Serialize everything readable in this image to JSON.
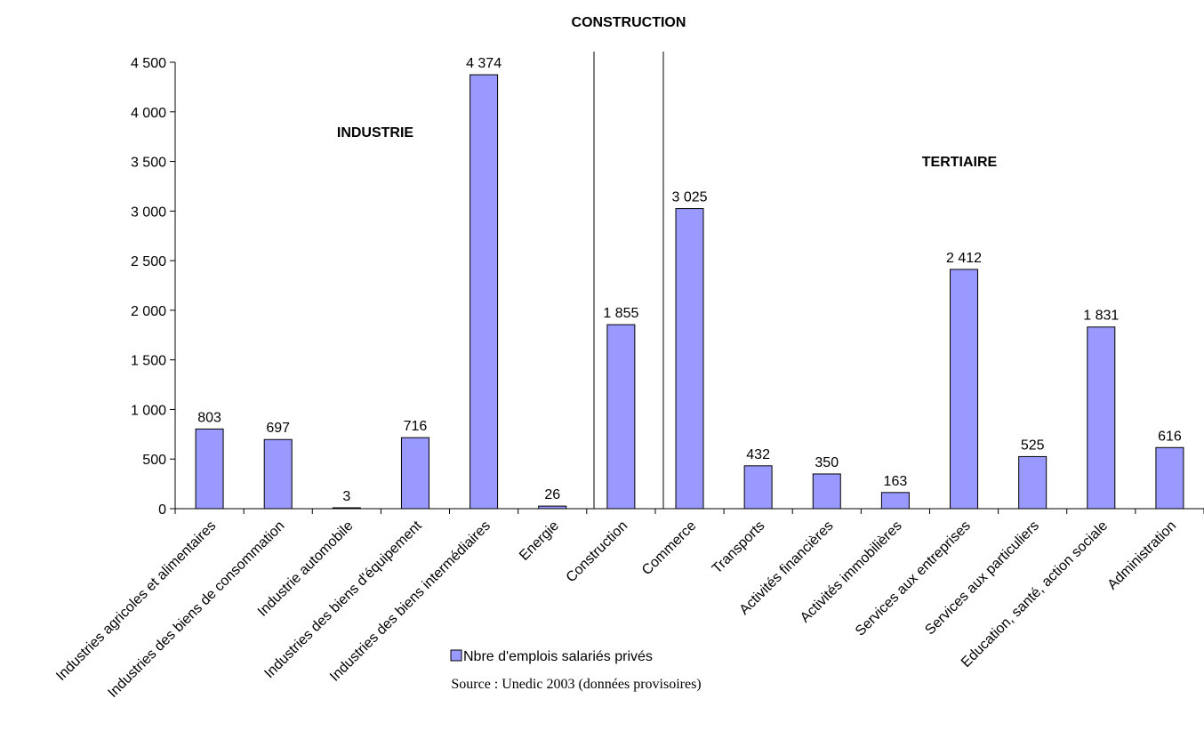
{
  "chart_data": {
    "type": "bar",
    "title": "CONSTRUCTION",
    "categories": [
      "Industries agricoles et alimentaires",
      "Industries des biens de consommation",
      "Industrie automobile",
      "Industries des biens d'équipement",
      "Industries des biens intermédiaires",
      "Energie",
      "Construction",
      "Commerce",
      "Transports",
      "Activités financières",
      "Activités immobilières",
      "Services aux entreprises",
      "Services aux particuliers",
      "Education, santé, action sociale",
      "Administration"
    ],
    "series": [
      {
        "name": "Nbre d'emplois salariés privés",
        "values": [
          803,
          697,
          3,
          716,
          4374,
          26,
          1855,
          3025,
          432,
          350,
          163,
          2412,
          525,
          1831,
          616
        ],
        "labels": [
          "803",
          "697",
          "3",
          "716",
          "4 374",
          "26",
          "1 855",
          "3 025",
          "432",
          "350",
          "163",
          "2 412",
          "525",
          "1 831",
          "616"
        ]
      }
    ],
    "ylim": [
      0,
      4500
    ],
    "yticks": [
      0,
      500,
      1000,
      1500,
      2000,
      2500,
      3000,
      3500,
      4000,
      4500
    ],
    "ytick_labels": [
      "0",
      "500",
      "1 000",
      "1 500",
      "2 000",
      "2 500",
      "3 000",
      "3 500",
      "4 000",
      "4 500"
    ],
    "xlabel": "",
    "ylabel": "",
    "grid": false,
    "legend_position": "bottom-center",
    "annotations": {
      "industrie": "INDUSTRIE",
      "tertiaire": "TERTIAIRE"
    },
    "source": "Source : Unedic 2003 (données provisoires)",
    "colors": {
      "bar_fill": "#9999ff",
      "bar_stroke": "#000000"
    }
  }
}
